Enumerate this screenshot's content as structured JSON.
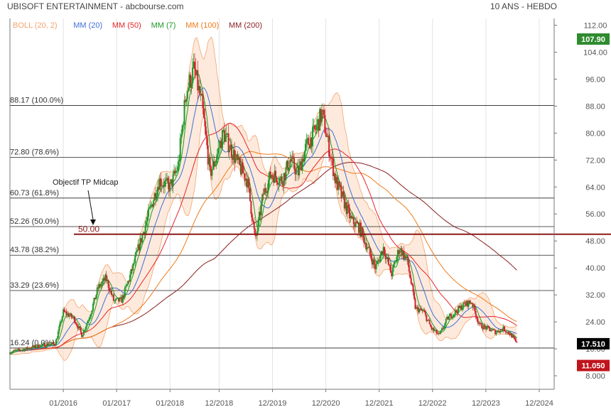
{
  "chart_data": {
    "type": "candlestick",
    "title": "UBISOFT ENTERTAINMENT - abcbourse.com",
    "period_label": "10 ANS - HEBDO",
    "legend": [
      {
        "label": "BOLL (20, 2)",
        "color": "#f4a36e"
      },
      {
        "label": "MM (20)",
        "color": "#3f6fd8"
      },
      {
        "label": "MM (50)",
        "color": "#e8242b"
      },
      {
        "label": "MM (7)",
        "color": "#1e9a2a"
      },
      {
        "label": "MM (100)",
        "color": "#f07a1a"
      },
      {
        "label": "MM (200)",
        "color": "#8a1f1f"
      }
    ],
    "y_ticks": [
      8,
      16,
      24,
      32,
      40,
      48,
      56,
      64,
      72,
      80,
      88,
      96,
      104,
      112
    ],
    "y_tick_labels": [
      "8.000",
      "16.00",
      "24.00",
      "32.00",
      "40.00",
      "48.00",
      "56.00",
      "64.00",
      "72.00",
      "80.00",
      "88.00",
      "96.00",
      "104.00",
      "112.00"
    ],
    "ylim": [
      4,
      114
    ],
    "x_ticks": [
      {
        "date": 2016.0,
        "label": "01/2016"
      },
      {
        "date": 2017.0,
        "label": "01/2017"
      },
      {
        "date": 2018.0,
        "label": "01/2018"
      },
      {
        "date": 2018.92,
        "label": "12/2018"
      },
      {
        "date": 2019.92,
        "label": "12/2019"
      },
      {
        "date": 2020.92,
        "label": "12/2020"
      },
      {
        "date": 2021.92,
        "label": "12/2021"
      },
      {
        "date": 2022.92,
        "label": "12/2022"
      },
      {
        "date": 2023.92,
        "label": "12/2023"
      },
      {
        "date": 2024.92,
        "label": "12/2024"
      }
    ],
    "xlim": [
      2015.0,
      2025.2
    ],
    "fibonacci": [
      {
        "label": "88.17  (100.0%)",
        "value": 88.17
      },
      {
        "label": "72.80  (78.6%)",
        "value": 72.8
      },
      {
        "label": "60.73  (61.8%)",
        "value": 60.73
      },
      {
        "label": "52.26  (50.0%)",
        "value": 52.26
      },
      {
        "label": "43.78  (38.2%)",
        "value": 43.78
      },
      {
        "label": "33.29  (23.6%)",
        "value": 33.29
      },
      {
        "label": "16.24  (0.0%)",
        "value": 16.24
      }
    ],
    "target_line": {
      "value": 50.0,
      "label": "50.00",
      "annotation": "Objectif TP Midcap",
      "color": "#8b1a1a"
    },
    "price_badges": [
      {
        "value": 107.9,
        "label": "107.90",
        "color": "#2e8b2e"
      },
      {
        "value": 17.51,
        "label": "17.510",
        "color": "#000000"
      },
      {
        "value": 11.05,
        "label": "11.050",
        "color": "#c0141c"
      }
    ],
    "price_path": [
      [
        2015.0,
        15.0
      ],
      [
        2015.3,
        16.0
      ],
      [
        2015.6,
        17.0
      ],
      [
        2015.85,
        17.5
      ],
      [
        2016.0,
        27.0
      ],
      [
        2016.2,
        25.0
      ],
      [
        2016.35,
        20.0
      ],
      [
        2016.5,
        26.0
      ],
      [
        2016.65,
        34.0
      ],
      [
        2016.8,
        37.0
      ],
      [
        2016.95,
        30.0
      ],
      [
        2017.1,
        30.5
      ],
      [
        2017.3,
        40.0
      ],
      [
        2017.45,
        48.0
      ],
      [
        2017.6,
        56.0
      ],
      [
        2017.8,
        66.0
      ],
      [
        2018.0,
        64.0
      ],
      [
        2018.15,
        70.0
      ],
      [
        2018.3,
        92.0
      ],
      [
        2018.45,
        99.0
      ],
      [
        2018.6,
        88.0
      ],
      [
        2018.75,
        68.0
      ],
      [
        2018.85,
        72.0
      ],
      [
        2019.0,
        80.0
      ],
      [
        2019.15,
        75.0
      ],
      [
        2019.3,
        70.0
      ],
      [
        2019.45,
        66.0
      ],
      [
        2019.6,
        48.0
      ],
      [
        2019.75,
        62.0
      ],
      [
        2019.9,
        68.0
      ],
      [
        2020.1,
        66.0
      ],
      [
        2020.25,
        72.0
      ],
      [
        2020.4,
        68.0
      ],
      [
        2020.55,
        76.0
      ],
      [
        2020.7,
        80.0
      ],
      [
        2020.85,
        86.0
      ],
      [
        2020.95,
        78.0
      ],
      [
        2021.1,
        66.0
      ],
      [
        2021.25,
        60.0
      ],
      [
        2021.4,
        54.0
      ],
      [
        2021.55,
        52.0
      ],
      [
        2021.7,
        46.0
      ],
      [
        2021.85,
        40.0
      ],
      [
        2022.0,
        46.0
      ],
      [
        2022.15,
        38.0
      ],
      [
        2022.3,
        46.0
      ],
      [
        2022.45,
        42.0
      ],
      [
        2022.6,
        28.0
      ],
      [
        2022.75,
        27.0
      ],
      [
        2022.9,
        22.0
      ],
      [
        2023.05,
        20.0
      ],
      [
        2023.2,
        25.0
      ],
      [
        2023.35,
        27.0
      ],
      [
        2023.5,
        29.0
      ],
      [
        2023.65,
        30.0
      ],
      [
        2023.8,
        23.0
      ],
      [
        2023.95,
        22.0
      ],
      [
        2024.1,
        21.0
      ],
      [
        2024.25,
        22.0
      ],
      [
        2024.4,
        20.0
      ],
      [
        2024.5,
        17.5
      ]
    ]
  }
}
